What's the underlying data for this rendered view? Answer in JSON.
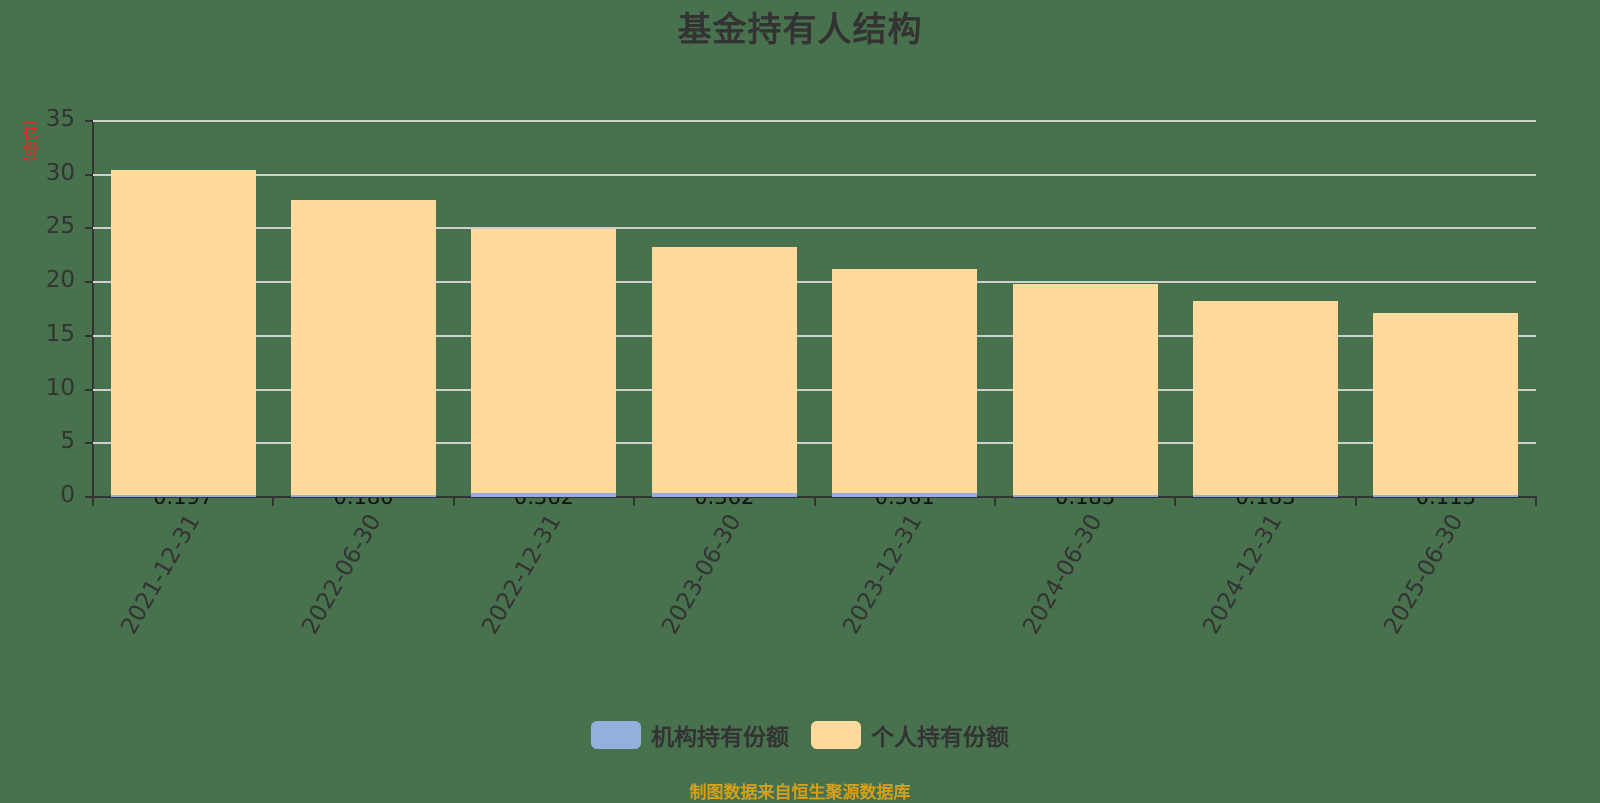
{
  "title": "基金持有人结构",
  "y_unit": "(亿份)",
  "legend": [
    {
      "label": "机构持有份额",
      "color": "#92afde"
    },
    {
      "label": "个人持有份额",
      "color": "#ffda9b"
    }
  ],
  "footer": "制图数据来自恒生聚源数据库",
  "y_ticks": [
    "0",
    "5",
    "10",
    "15",
    "20",
    "25",
    "30",
    "35"
  ],
  "x_labels": [
    "2021-12-31",
    "2022-06-30",
    "2022-12-31",
    "2023-06-30",
    "2023-12-31",
    "2024-06-30",
    "2024-12-31",
    "2025-06-30"
  ],
  "bar_labels": [
    "0.197",
    "0.180",
    "0.362",
    "0.362",
    "0.361",
    "0.183",
    "0.183",
    "0.113"
  ],
  "chart_data": {
    "type": "bar",
    "stacked": true,
    "title": "基金持有人结构",
    "xlabel": "",
    "ylabel": "(亿份)",
    "ylim": [
      0,
      35
    ],
    "yticks": [
      0,
      5,
      10,
      15,
      20,
      25,
      30,
      35
    ],
    "grid": true,
    "legend_position": "bottom",
    "categories": [
      "2021-12-31",
      "2022-06-30",
      "2022-12-31",
      "2023-06-30",
      "2023-12-31",
      "2024-06-30",
      "2024-12-31",
      "2025-06-30"
    ],
    "series": [
      {
        "name": "机构持有份额",
        "color": "#92afde",
        "values": [
          0.197,
          0.18,
          0.362,
          0.362,
          0.361,
          0.183,
          0.183,
          0.113
        ]
      },
      {
        "name": "个人持有份额",
        "color": "#ffda9b",
        "values": [
          30.2,
          27.5,
          24.6,
          22.9,
          20.9,
          19.6,
          18.1,
          16.9
        ]
      }
    ],
    "annotations": [
      "制图数据来自恒生聚源数据库"
    ]
  }
}
